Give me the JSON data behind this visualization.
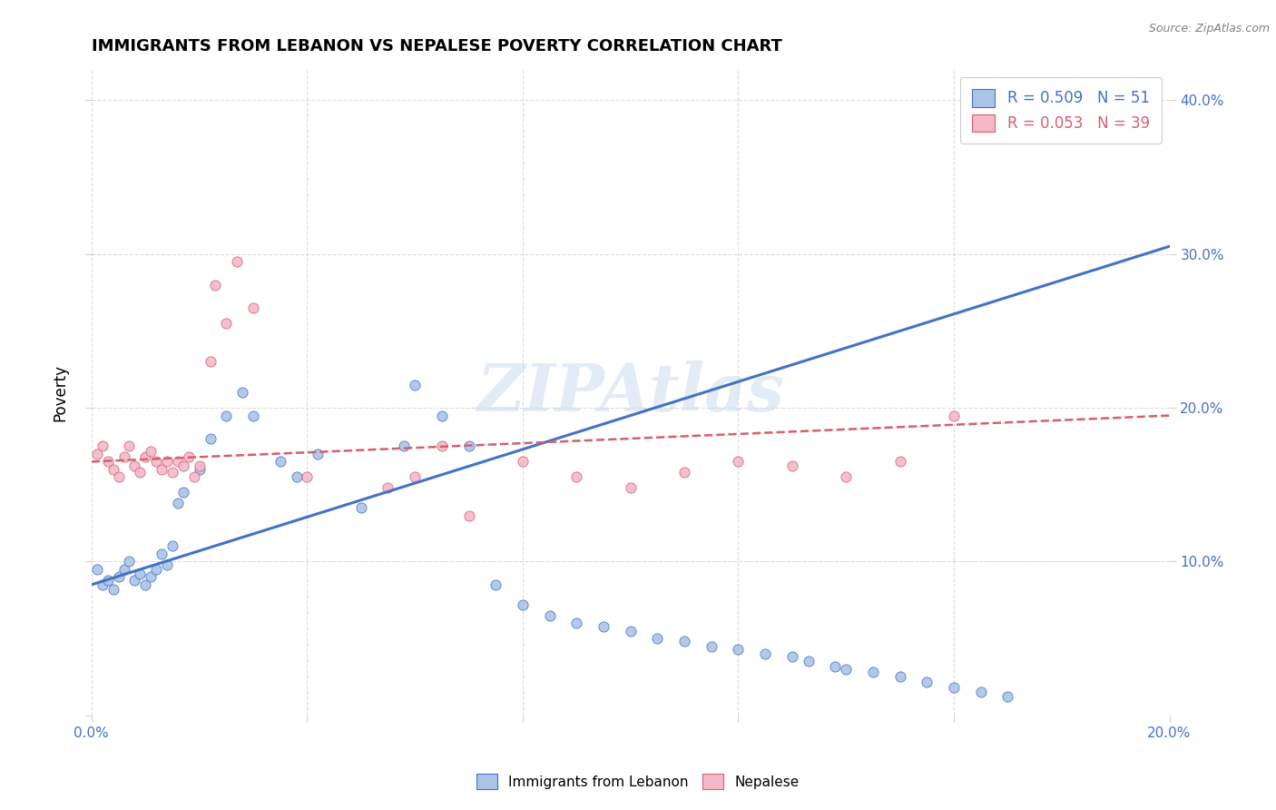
{
  "title": "IMMIGRANTS FROM LEBANON VS NEPALESE POVERTY CORRELATION CHART",
  "source": "Source: ZipAtlas.com",
  "ylabel": "Poverty",
  "xlim": [
    0.0,
    0.2
  ],
  "ylim": [
    0.0,
    0.42
  ],
  "blue_label": "Immigrants from Lebanon",
  "pink_label": "Nepalese",
  "blue_R": "0.509",
  "blue_N": "51",
  "pink_R": "0.053",
  "pink_N": "39",
  "blue_color": "#aac4e8",
  "pink_color": "#f4b8c8",
  "blue_line_color": "#4472c4",
  "pink_line_color": "#d46070",
  "watermark": "ZIPAtlas",
  "blue_points": [
    [
      0.001,
      0.095
    ],
    [
      0.002,
      0.085
    ],
    [
      0.003,
      0.088
    ],
    [
      0.004,
      0.082
    ],
    [
      0.005,
      0.09
    ],
    [
      0.006,
      0.095
    ],
    [
      0.007,
      0.1
    ],
    [
      0.008,
      0.088
    ],
    [
      0.009,
      0.092
    ],
    [
      0.01,
      0.085
    ],
    [
      0.011,
      0.09
    ],
    [
      0.012,
      0.095
    ],
    [
      0.013,
      0.105
    ],
    [
      0.014,
      0.098
    ],
    [
      0.015,
      0.11
    ],
    [
      0.016,
      0.138
    ],
    [
      0.017,
      0.145
    ],
    [
      0.02,
      0.16
    ],
    [
      0.022,
      0.18
    ],
    [
      0.025,
      0.195
    ],
    [
      0.028,
      0.21
    ],
    [
      0.03,
      0.195
    ],
    [
      0.035,
      0.165
    ],
    [
      0.038,
      0.155
    ],
    [
      0.042,
      0.17
    ],
    [
      0.05,
      0.135
    ],
    [
      0.058,
      0.175
    ],
    [
      0.06,
      0.215
    ],
    [
      0.065,
      0.195
    ],
    [
      0.07,
      0.175
    ],
    [
      0.075,
      0.085
    ],
    [
      0.08,
      0.072
    ],
    [
      0.085,
      0.065
    ],
    [
      0.09,
      0.06
    ],
    [
      0.095,
      0.058
    ],
    [
      0.1,
      0.055
    ],
    [
      0.105,
      0.05
    ],
    [
      0.11,
      0.048
    ],
    [
      0.115,
      0.045
    ],
    [
      0.12,
      0.043
    ],
    [
      0.125,
      0.04
    ],
    [
      0.13,
      0.038
    ],
    [
      0.133,
      0.035
    ],
    [
      0.138,
      0.032
    ],
    [
      0.14,
      0.03
    ],
    [
      0.145,
      0.028
    ],
    [
      0.15,
      0.025
    ],
    [
      0.155,
      0.022
    ],
    [
      0.16,
      0.018
    ],
    [
      0.165,
      0.015
    ],
    [
      0.17,
      0.012
    ]
  ],
  "pink_points": [
    [
      0.001,
      0.17
    ],
    [
      0.002,
      0.175
    ],
    [
      0.003,
      0.165
    ],
    [
      0.004,
      0.16
    ],
    [
      0.005,
      0.155
    ],
    [
      0.006,
      0.168
    ],
    [
      0.007,
      0.175
    ],
    [
      0.008,
      0.162
    ],
    [
      0.009,
      0.158
    ],
    [
      0.01,
      0.168
    ],
    [
      0.011,
      0.172
    ],
    [
      0.012,
      0.165
    ],
    [
      0.013,
      0.16
    ],
    [
      0.014,
      0.165
    ],
    [
      0.015,
      0.158
    ],
    [
      0.016,
      0.165
    ],
    [
      0.017,
      0.162
    ],
    [
      0.018,
      0.168
    ],
    [
      0.019,
      0.155
    ],
    [
      0.02,
      0.162
    ],
    [
      0.022,
      0.23
    ],
    [
      0.023,
      0.28
    ],
    [
      0.025,
      0.255
    ],
    [
      0.027,
      0.295
    ],
    [
      0.03,
      0.265
    ],
    [
      0.04,
      0.155
    ],
    [
      0.055,
      0.148
    ],
    [
      0.06,
      0.155
    ],
    [
      0.065,
      0.175
    ],
    [
      0.07,
      0.13
    ],
    [
      0.08,
      0.165
    ],
    [
      0.09,
      0.155
    ],
    [
      0.1,
      0.148
    ],
    [
      0.11,
      0.158
    ],
    [
      0.12,
      0.165
    ],
    [
      0.13,
      0.162
    ],
    [
      0.14,
      0.155
    ],
    [
      0.15,
      0.165
    ],
    [
      0.16,
      0.195
    ]
  ]
}
